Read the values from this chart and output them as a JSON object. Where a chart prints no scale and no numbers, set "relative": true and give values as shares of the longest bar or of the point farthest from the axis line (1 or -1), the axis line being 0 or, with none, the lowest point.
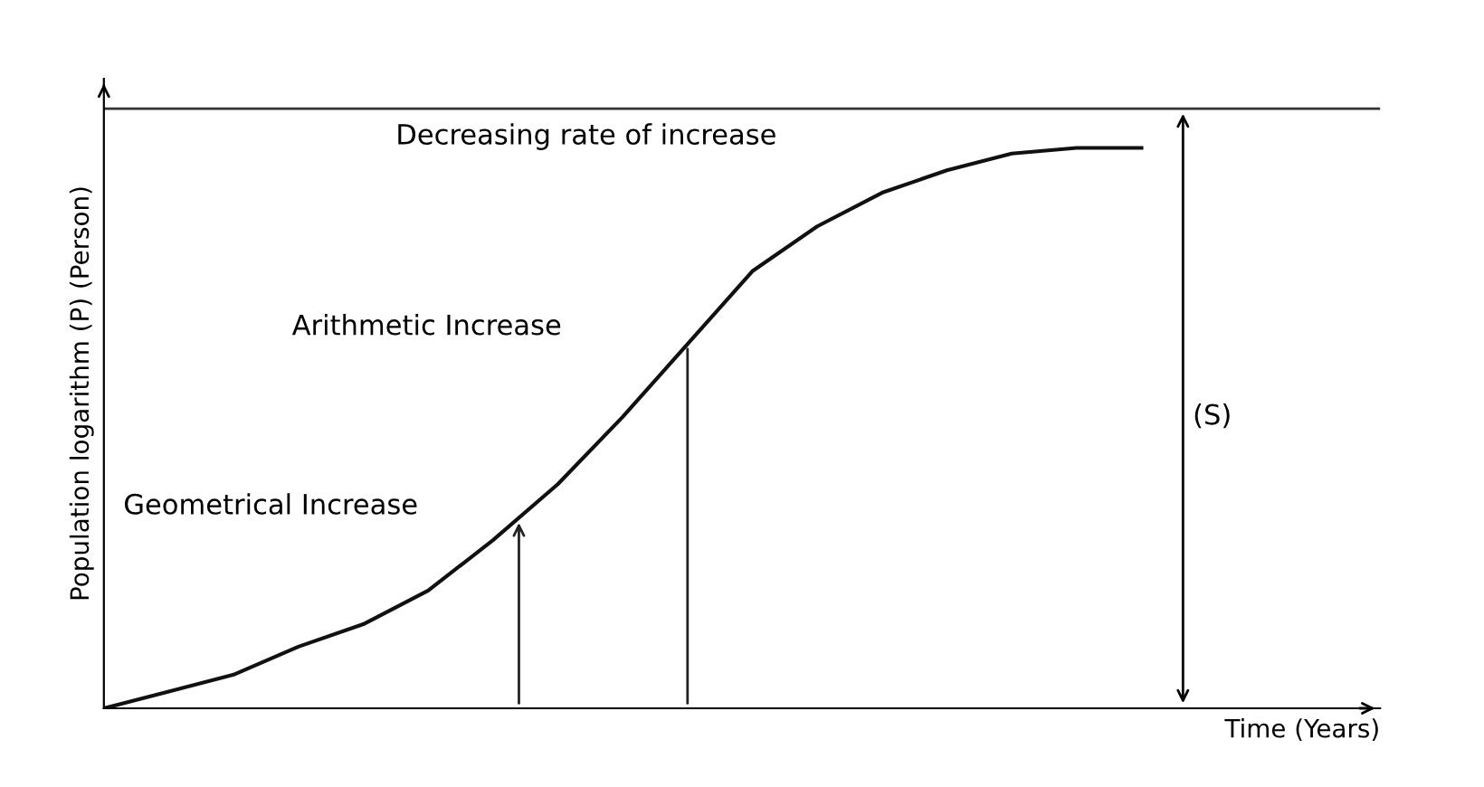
{
  "chart_data": {
    "type": "line",
    "relative": true,
    "xlabel": "Time (Years)",
    "ylabel": "Population logarithm (P) (Person)",
    "categories": [
      null,
      null,
      null,
      null,
      null,
      null,
      null,
      null,
      null,
      null,
      null,
      null,
      null,
      null,
      null,
      null,
      null
    ],
    "series": [
      {
        "color": "#111111",
        "values": [
          0,
          0.03,
          0.06,
          0.11,
          0.15,
          0.21,
          0.3,
          0.4,
          0.52,
          0.65,
          0.78,
          0.86,
          0.92,
          0.96,
          0.99,
          1.0,
          1.0
        ]
      }
    ],
    "ref_lines": [
      {
        "axis": "y",
        "value": 1.07,
        "color": "#333333"
      }
    ],
    "annotations": [
      "Decreasing rate of increase",
      "Arithmetic Increase",
      "Geometrical Increase",
      "(S)"
    ],
    "marker": "none",
    "line_style": "solid"
  }
}
